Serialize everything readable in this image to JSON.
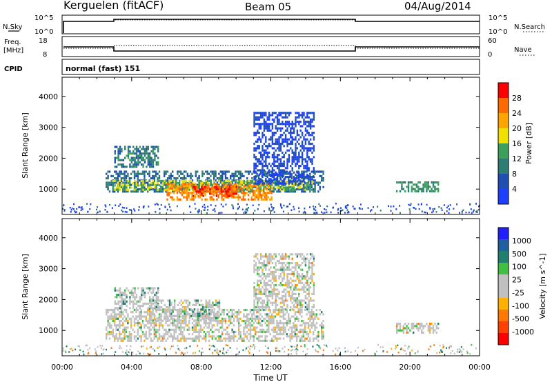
{
  "header": {
    "station": "Kerguelen (fitACF)",
    "beam": "Beam 05",
    "date": "04/Aug/2014"
  },
  "param_labels": {
    "nsky": "N.Sky",
    "nsky_ticks": [
      "10^5",
      "10^0"
    ],
    "nsearch": "N.Search",
    "nsearch_ticks": [
      "10^5",
      "10^0"
    ],
    "freq": "Freq.",
    "freq_unit": "[MHz]",
    "freq_ticks": [
      "18",
      "8"
    ],
    "nave": "Nave",
    "nave_ticks": [
      "60",
      "0"
    ],
    "cpid": "CPID",
    "cpid_text": "normal (fast) 151"
  },
  "colors": {
    "power_scale": [
      "#1f3fff",
      "#1f4fb3",
      "#2e7d74",
      "#3aa05a",
      "#f0e000",
      "#ffa500",
      "#ff6a00",
      "#ff0000"
    ],
    "velocity_scale": [
      "#2020ff",
      "#2060a0",
      "#208070",
      "#40c040",
      "#c0c0c0",
      "#c0c0c0",
      "#ffb000",
      "#ff7800",
      "#ff4000",
      "#ff0000"
    ],
    "ground_scatter": "#c0c0c0"
  },
  "chart_data": [
    {
      "type": "heatmap",
      "title": "",
      "xlabel": "",
      "ylabel": "Slant Range [km]",
      "x_ticks": [
        "00:00",
        "04:00",
        "08:00",
        "12:00",
        "16:00",
        "20:00",
        "00:00"
      ],
      "xlim_hours": [
        0,
        24
      ],
      "ylim": [
        180,
        4620
      ],
      "y_ticks": [
        1000,
        2000,
        3000,
        4000
      ],
      "colorbar": {
        "label": "Power [dB]",
        "ticks": [
          4,
          8,
          12,
          16,
          20,
          24,
          28
        ],
        "range": [
          0,
          32
        ]
      },
      "regions": [
        {
          "t0": 2.5,
          "t1": 15.0,
          "r0": 900,
          "r1": 1600,
          "level": 8
        },
        {
          "t0": 2.8,
          "t1": 14.5,
          "r0": 1000,
          "r1": 1300,
          "level": 16
        },
        {
          "t0": 6.0,
          "t1": 12.0,
          "r0": 700,
          "r1": 1200,
          "level": 24
        },
        {
          "t0": 7.5,
          "t1": 10.0,
          "r0": 800,
          "r1": 1100,
          "level": 28
        },
        {
          "t0": 3.0,
          "t1": 5.5,
          "r0": 1700,
          "r1": 2400,
          "level": 10
        },
        {
          "t0": 11.0,
          "t1": 14.5,
          "r0": 1200,
          "r1": 3500,
          "level": 4
        },
        {
          "t0": 19.2,
          "t1": 21.6,
          "r0": 950,
          "r1": 1250,
          "level": 12
        }
      ]
    },
    {
      "type": "heatmap",
      "title": "",
      "xlabel": "Time UT",
      "ylabel": "Slant Range [km]",
      "x_ticks": [
        "00:00",
        "04:00",
        "08:00",
        "12:00",
        "16:00",
        "20:00",
        "00:00"
      ],
      "xlim_hours": [
        0,
        24
      ],
      "ylim": [
        180,
        4620
      ],
      "y_ticks": [
        1000,
        2000,
        3000,
        4000
      ],
      "colorbar": {
        "label": "Velocity [m s^-1]",
        "ticks": [
          1000,
          500,
          100,
          25,
          -25,
          -100,
          -500,
          -1000
        ]
      },
      "regions": [
        {
          "t0": 2.5,
          "t1": 15.0,
          "r0": 700,
          "r1": 1700,
          "level": 0
        },
        {
          "t0": 3.0,
          "t1": 5.5,
          "r0": 1700,
          "r1": 2400,
          "level": 150
        },
        {
          "t0": 5.0,
          "t1": 9.0,
          "r0": 1300,
          "r1": 2000,
          "level": 80
        },
        {
          "t0": 11.0,
          "t1": 14.5,
          "r0": 1700,
          "r1": 3500,
          "level": 0
        },
        {
          "t0": 19.2,
          "t1": 21.6,
          "r0": 950,
          "r1": 1250,
          "level": 0
        }
      ]
    }
  ]
}
